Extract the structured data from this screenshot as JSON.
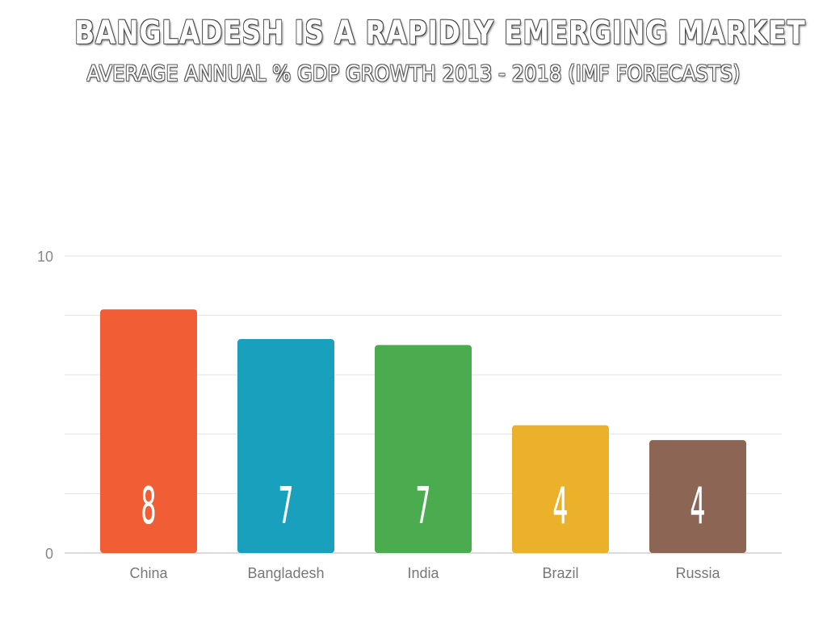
{
  "title": "BANGLADESH IS A RAPIDLY EMERGING MARKET",
  "subtitle": "AVERAGE ANNUAL % GDP GROWTH 2013 - 2018 (IMF FORECASTS)",
  "chart_data": {
    "type": "bar",
    "categories": [
      "China",
      "Bangladesh",
      "India",
      "Brazil",
      "Russia"
    ],
    "values": [
      8.2,
      7.2,
      7.0,
      4.3,
      3.8
    ],
    "value_labels": [
      "8",
      "7",
      "7",
      "4",
      "4"
    ],
    "colors": [
      "#f15d35",
      "#18a0bd",
      "#4aab4f",
      "#ecb12b",
      "#8c6554"
    ],
    "ylim": [
      0,
      10
    ],
    "y_tick_labels": [
      "10",
      "0"
    ],
    "grid": true,
    "xlabel": "",
    "ylabel": ""
  }
}
